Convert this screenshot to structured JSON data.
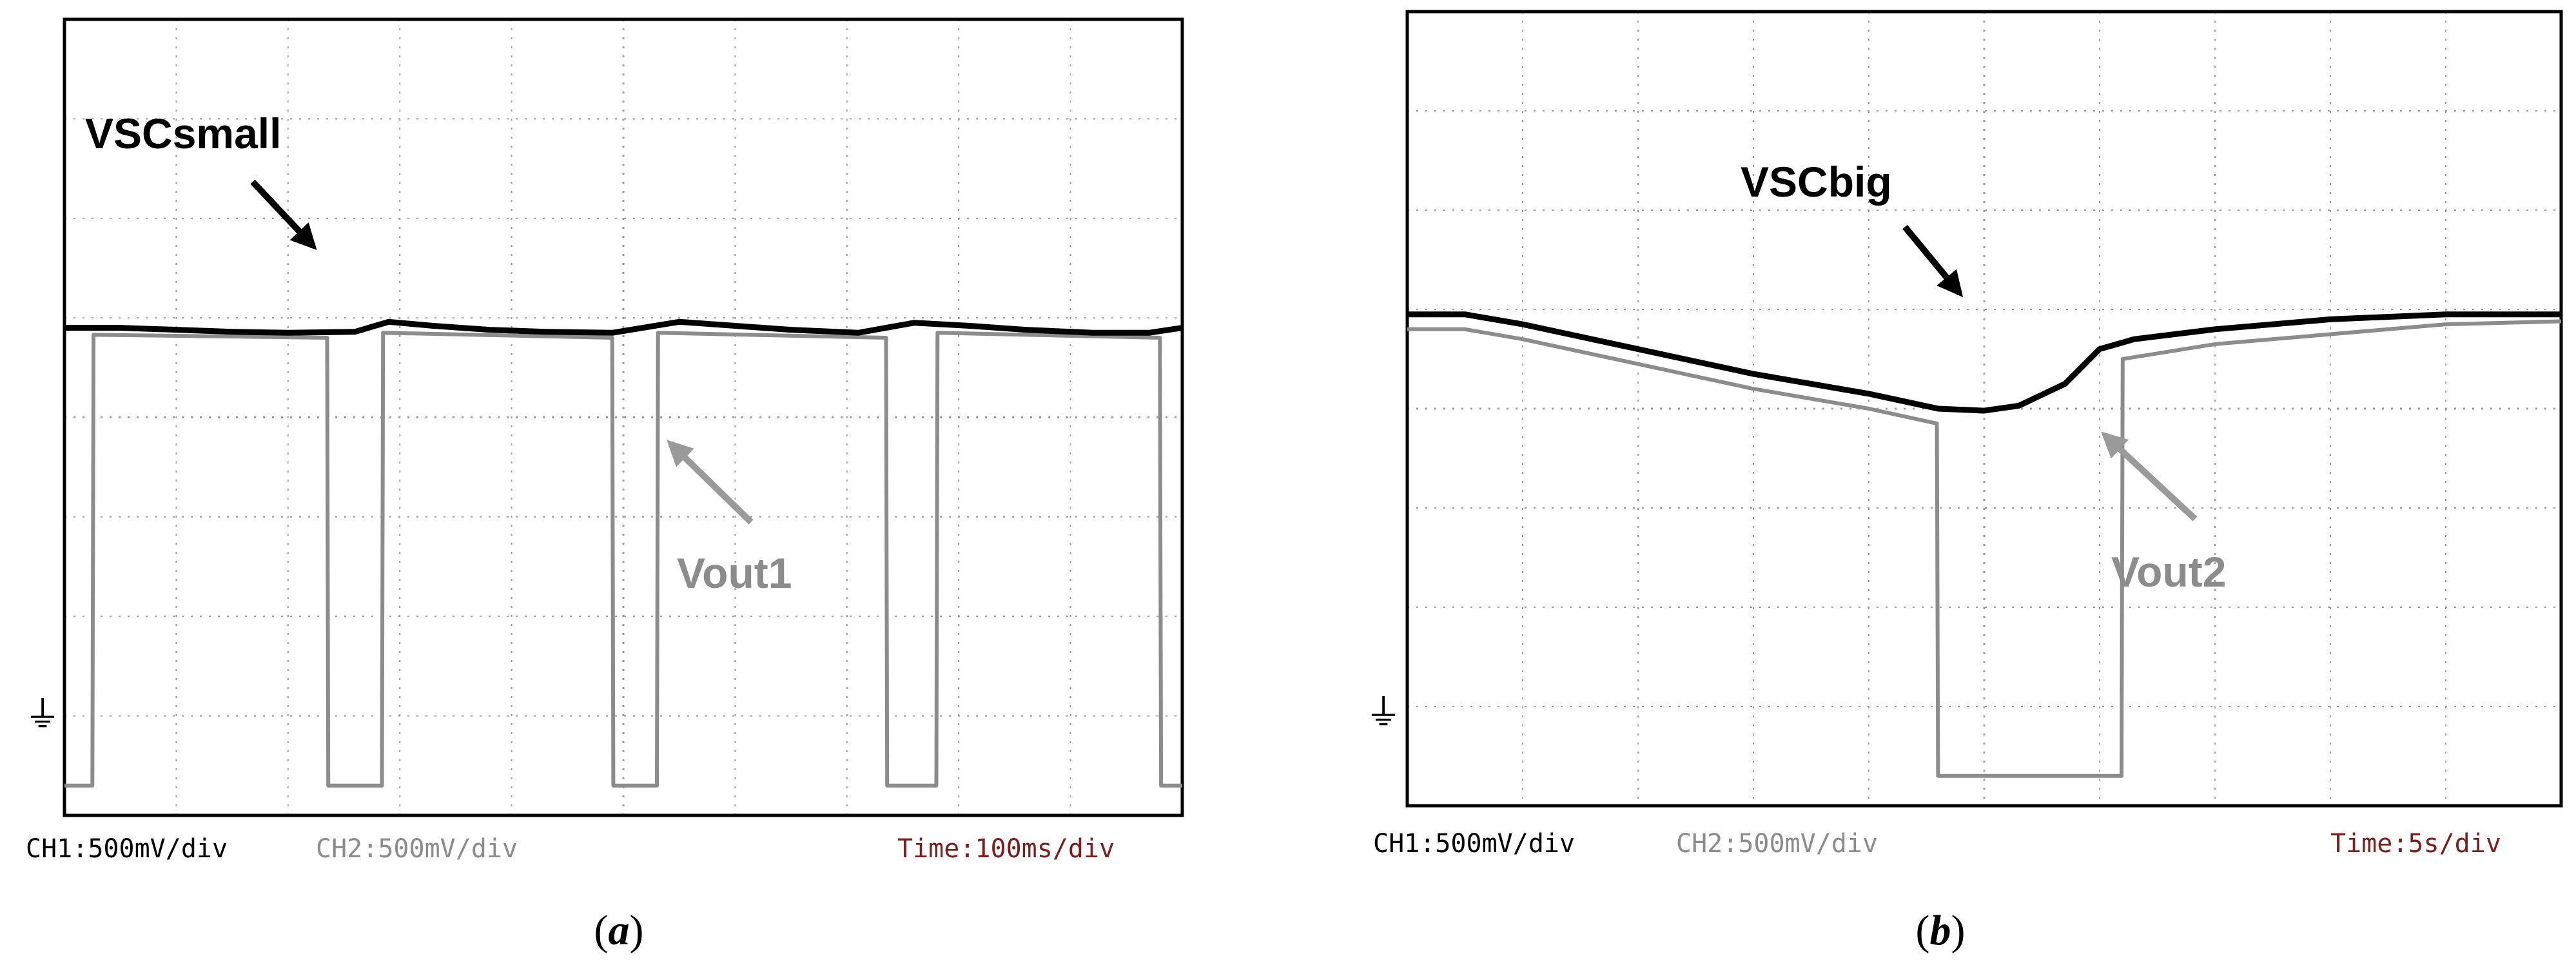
{
  "colors": {
    "background": "#ffffff",
    "frame": "#000000",
    "grid": "#9a9a9a",
    "ch1": "#000000",
    "ch2": "#8c8c8c",
    "time_text": "#7a1f1f"
  },
  "chart_data": [
    {
      "type": "line",
      "panel_label_parts": [
        "(",
        "a",
        ")"
      ],
      "ground_marker": "⏚",
      "status": {
        "ch1": "CH1:500mV/div",
        "ch2": "CH2:500mV/div",
        "time": "Time:100ms/div"
      },
      "divisions": {
        "x": 10,
        "y": 8
      },
      "xlim_div": [
        0,
        10
      ],
      "ylim_div": [
        -0.3,
        7.7
      ],
      "grid": true,
      "series": [
        {
          "name": "VSCsmall",
          "x": [
            0,
            0.5,
            1.0,
            1.5,
            2.0,
            2.6,
            2.9,
            3.3,
            3.8,
            4.3,
            4.9,
            5.5,
            6.0,
            6.5,
            7.1,
            7.6,
            8.1,
            8.6,
            9.2,
            9.7,
            10.0
          ],
          "y": [
            4.6,
            4.6,
            4.58,
            4.56,
            4.55,
            4.56,
            4.66,
            4.62,
            4.58,
            4.56,
            4.55,
            4.66,
            4.62,
            4.58,
            4.55,
            4.65,
            4.62,
            4.58,
            4.55,
            4.55,
            4.6
          ]
        },
        {
          "name": "Vout1",
          "x": [
            0,
            0.25,
            0.26,
            2.35,
            2.36,
            2.84,
            2.85,
            4.9,
            4.91,
            5.3,
            5.31,
            7.35,
            7.36,
            7.8,
            7.81,
            9.8,
            9.81,
            10.0
          ],
          "y": [
            0,
            0,
            4.53,
            4.5,
            0,
            0,
            4.55,
            4.5,
            0,
            0,
            4.55,
            4.5,
            0,
            0,
            4.55,
            4.5,
            0,
            0
          ]
        }
      ],
      "annotations": [
        {
          "text": "VSCsmall",
          "series": "VSCsmall"
        },
        {
          "text": "Vout1",
          "series": "Vout1"
        }
      ]
    },
    {
      "type": "line",
      "panel_label_parts": [
        "(",
        "b",
        ")"
      ],
      "ground_marker": "⏚",
      "status": {
        "ch1": "CH1:500mV/div",
        "ch2": "CH2:500mV/div",
        "time": "Time:5s/div"
      },
      "divisions": {
        "x": 10,
        "y": 8
      },
      "xlim_div": [
        0,
        10
      ],
      "ylim_div": [
        -0.3,
        7.7
      ],
      "grid": true,
      "series": [
        {
          "name": "VSCbig",
          "x": [
            0,
            0.5,
            1.0,
            2.0,
            3.0,
            4.0,
            4.6,
            5.0,
            5.3,
            5.7,
            6.0,
            6.3,
            7.0,
            8.0,
            9.0,
            10.0
          ],
          "y": [
            4.65,
            4.65,
            4.55,
            4.3,
            4.05,
            3.85,
            3.7,
            3.68,
            3.73,
            3.95,
            4.3,
            4.4,
            4.5,
            4.6,
            4.65,
            4.65
          ]
        },
        {
          "name": "Vout2",
          "x": [
            0,
            0.5,
            1.0,
            2.0,
            3.0,
            4.0,
            4.59,
            4.6,
            6.19,
            6.2,
            7.0,
            8.0,
            9.0,
            10.0
          ],
          "y": [
            4.5,
            4.5,
            4.4,
            4.15,
            3.9,
            3.7,
            3.55,
            0,
            0,
            4.2,
            4.35,
            4.45,
            4.55,
            4.58
          ]
        }
      ],
      "annotations": [
        {
          "text": "VSCbig",
          "series": "VSCbig"
        },
        {
          "text": "Vout2",
          "series": "Vout2"
        }
      ]
    }
  ]
}
